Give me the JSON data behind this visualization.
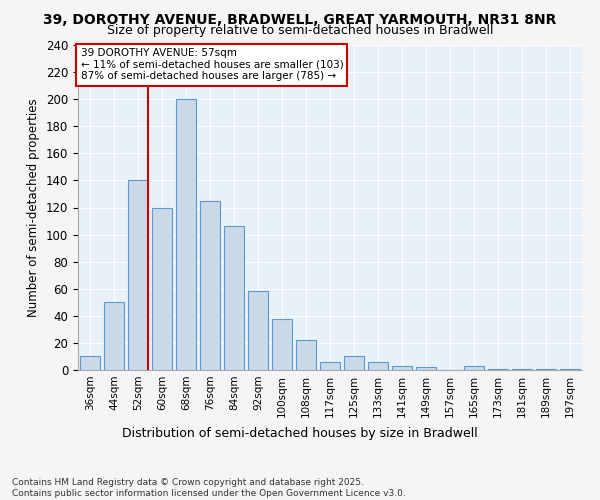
{
  "title1": "39, DOROTHY AVENUE, BRADWELL, GREAT YARMOUTH, NR31 8NR",
  "title2": "Size of property relative to semi-detached houses in Bradwell",
  "xlabel": "Distribution of semi-detached houses by size in Bradwell",
  "ylabel": "Number of semi-detached properties",
  "bins": [
    "36sqm",
    "44sqm",
    "52sqm",
    "60sqm",
    "68sqm",
    "76sqm",
    "84sqm",
    "92sqm",
    "100sqm",
    "108sqm",
    "117sqm",
    "125sqm",
    "133sqm",
    "141sqm",
    "149sqm",
    "157sqm",
    "165sqm",
    "173sqm",
    "181sqm",
    "189sqm",
    "197sqm"
  ],
  "values": [
    10,
    50,
    140,
    120,
    200,
    125,
    106,
    58,
    38,
    22,
    6,
    10,
    6,
    3,
    2,
    0,
    3,
    1,
    1,
    1,
    1
  ],
  "bar_color": "#c9d9e8",
  "bar_edge_color": "#5b9bd5",
  "ref_line_label": "39 DOROTHY AVENUE: 57sqm",
  "annotation1": "← 11% of semi-detached houses are smaller (103)",
  "annotation2": "87% of semi-detached houses are larger (785) →",
  "box_color": "#ffffff",
  "box_edge_color": "#cc0000",
  "ylim": [
    0,
    240
  ],
  "yticks": [
    0,
    20,
    40,
    60,
    80,
    100,
    120,
    140,
    160,
    180,
    200,
    220,
    240
  ],
  "background_color": "#e8f0f8",
  "fig_background": "#f5f5f5",
  "footer": "Contains HM Land Registry data © Crown copyright and database right 2025.\nContains public sector information licensed under the Open Government Licence v3.0.",
  "title1_fontsize": 10,
  "title2_fontsize": 9,
  "ref_line_x": 2.4
}
